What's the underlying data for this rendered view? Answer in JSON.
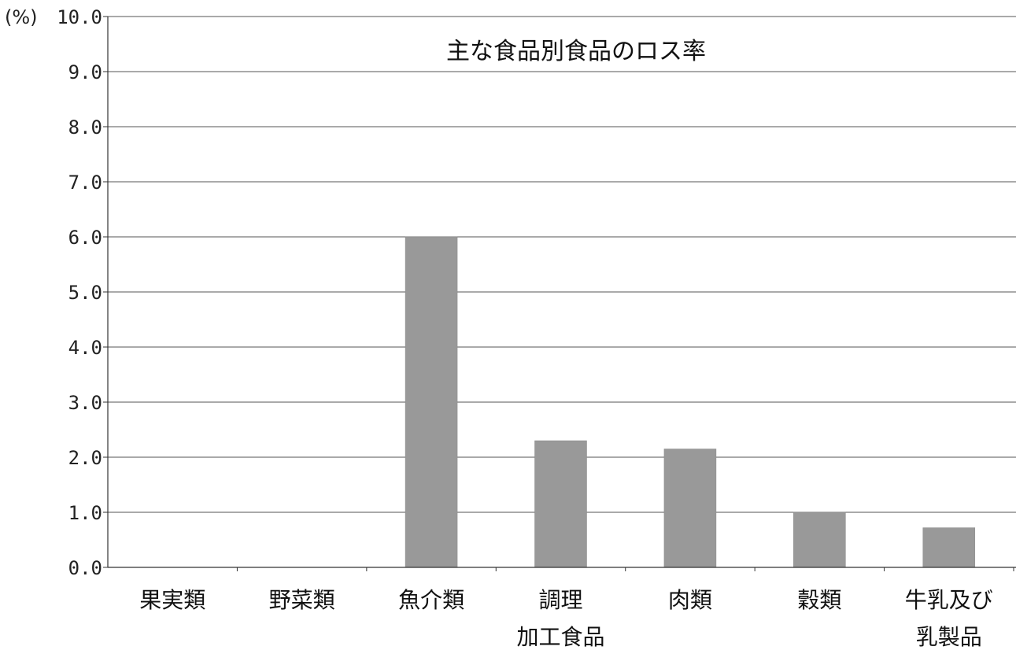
{
  "chart_data": {
    "type": "bar",
    "title": "主な食品別食品のロス率",
    "y_unit": "(%)",
    "ylim": [
      0,
      10
    ],
    "yticks": [
      "0.0",
      "1.0",
      "2.0",
      "3.0",
      "4.0",
      "5.0",
      "6.0",
      "7.0",
      "8.0",
      "9.0",
      "10.0"
    ],
    "grid": true,
    "legend": "none",
    "categories": [
      [
        "果実類"
      ],
      [
        "野菜類"
      ],
      [
        "魚介類"
      ],
      [
        "調理",
        "加工食品"
      ],
      [
        "肉類"
      ],
      [
        "穀類"
      ],
      [
        "牛乳及び",
        "乳製品"
      ]
    ],
    "values": [
      0,
      0,
      6.0,
      2.3,
      2.15,
      1.0,
      0.72
    ],
    "colors": {
      "bar": "#999999",
      "grid": "#555555",
      "axis": "#333333"
    }
  }
}
